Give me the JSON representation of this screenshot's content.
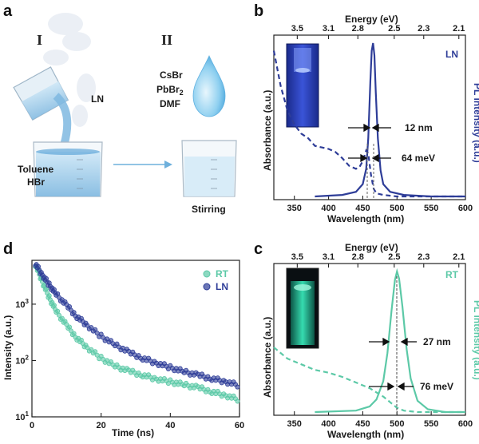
{
  "panels": {
    "a": {
      "letter": "a",
      "step1": "I",
      "step2": "II",
      "ln_label": "LN",
      "beaker1_label_1": "Toluene",
      "beaker1_label_2": "HBr",
      "reagent_1": "CsBr",
      "reagent_2_base": "PbBr",
      "reagent_2_sub": "2",
      "reagent_3": "DMF",
      "beaker2_label": "Stirring"
    },
    "b": {
      "letter": "b",
      "sample_label": "LN",
      "fwhm_nm": "12 nm",
      "fwhm_mev": "64 meV",
      "top_axis_title": "Energy (eV)",
      "bottom_axis_title": "Wavelength (nm)",
      "left_axis_title": "Absorbance (a.u.)",
      "right_axis_title": "PL intensity (a.u.)",
      "bottom_ticks": [
        "350",
        "400",
        "450",
        "500",
        "550",
        "600"
      ],
      "top_ticks": [
        "3.5",
        "3.1",
        "2.8",
        "2.5",
        "2.3",
        "2.1"
      ],
      "color": "#2e3d98"
    },
    "c": {
      "letter": "c",
      "sample_label": "RT",
      "fwhm_nm": "27 nm",
      "fwhm_mev": "76 meV",
      "top_axis_title": "Energy (eV)",
      "bottom_axis_title": "Wavelength (nm)",
      "left_axis_title": "Absorbance (a.u.)",
      "right_axis_title": "PL intensity (a.u.)",
      "bottom_ticks": [
        "350",
        "400",
        "450",
        "500",
        "550",
        "600"
      ],
      "top_ticks": [
        "3.5",
        "3.1",
        "2.8",
        "2.5",
        "2.3",
        "2.1"
      ],
      "color": "#5cc9a7"
    },
    "d": {
      "letter": "d",
      "x_axis_title": "Time (ns)",
      "y_axis_title": "Intensity (a.u.)",
      "x_ticks": [
        "0",
        "20",
        "40",
        "60"
      ],
      "y_ticks_base": [
        "10",
        "10",
        "10"
      ],
      "y_ticks_exp": [
        "1",
        "2",
        "3"
      ],
      "legend": [
        {
          "label": "RT",
          "color": "#5cc9a7"
        },
        {
          "label": "LN",
          "color": "#2e3d98"
        }
      ]
    }
  },
  "chart_data": [
    {
      "type": "line",
      "panel": "b",
      "xlabel": "Wavelength (nm)",
      "x2label": "Energy (eV)",
      "ylabel": "Absorbance (a.u.)",
      "y2label": "PL intensity (a.u.)",
      "xlim": [
        320,
        600
      ],
      "series": [
        {
          "style": "dashed",
          "x": [
            320,
            330,
            340,
            350,
            360,
            370,
            380,
            390,
            400,
            410,
            420,
            430,
            440,
            445,
            450,
            455,
            458,
            462,
            466,
            470,
            480,
            500,
            540,
            600
          ],
          "y": [
            0.95,
            0.72,
            0.56,
            0.47,
            0.41,
            0.38,
            0.33,
            0.32,
            0.31,
            0.29,
            0.25,
            0.2,
            0.18,
            0.19,
            0.23,
            0.3,
            0.28,
            0.14,
            0.05,
            0.02,
            0.01,
            0.0,
            0.0,
            0.0
          ]
        },
        {
          "style": "solid",
          "x": [
            380,
            420,
            440,
            450,
            455,
            458,
            461,
            463,
            465,
            467,
            469,
            472,
            476,
            480,
            490,
            510,
            550,
            600
          ],
          "y": [
            0.0,
            0.01,
            0.03,
            0.08,
            0.18,
            0.38,
            0.75,
            0.95,
            1.0,
            0.92,
            0.68,
            0.38,
            0.17,
            0.08,
            0.03,
            0.01,
            0.0,
            0.0
          ]
        }
      ]
    },
    {
      "type": "line",
      "panel": "c",
      "xlabel": "Wavelength (nm)",
      "x2label": "Energy (eV)",
      "ylabel": "Absorbance (a.u.)",
      "y2label": "PL intensity (a.u.)",
      "xlim": [
        320,
        600
      ],
      "series": [
        {
          "style": "dashed",
          "x": [
            320,
            340,
            360,
            380,
            400,
            420,
            440,
            460,
            470,
            480,
            490,
            500,
            510,
            530,
            560,
            600
          ],
          "y": [
            0.46,
            0.38,
            0.34,
            0.3,
            0.28,
            0.25,
            0.21,
            0.17,
            0.14,
            0.11,
            0.07,
            0.03,
            0.01,
            0.0,
            0.0,
            0.0
          ]
        },
        {
          "style": "solid",
          "x": [
            380,
            440,
            460,
            470,
            480,
            486,
            492,
            497,
            500,
            503,
            508,
            514,
            520,
            530,
            545,
            570,
            600
          ],
          "y": [
            0.0,
            0.01,
            0.04,
            0.09,
            0.22,
            0.42,
            0.72,
            0.94,
            1.0,
            0.95,
            0.75,
            0.45,
            0.24,
            0.08,
            0.02,
            0.0,
            0.0
          ]
        }
      ]
    },
    {
      "type": "scatter",
      "panel": "d",
      "xlabel": "Time (ns)",
      "ylabel": "Intensity (a.u.)",
      "xlim": [
        0,
        60
      ],
      "ylim": [
        10,
        6000
      ],
      "yscale": "log",
      "series": [
        {
          "name": "RT",
          "x": [
            1,
            3,
            5,
            7,
            10,
            13,
            16,
            20,
            24,
            28,
            32,
            36,
            40,
            44,
            48,
            52,
            56,
            60
          ],
          "y": [
            5000,
            2500,
            1300,
            750,
            420,
            250,
            170,
            110,
            80,
            65,
            55,
            47,
            42,
            37,
            33,
            28,
            24,
            20
          ]
        },
        {
          "name": "LN",
          "x": [
            1,
            3,
            5,
            7,
            10,
            13,
            16,
            20,
            24,
            28,
            32,
            36,
            40,
            44,
            48,
            52,
            56,
            60
          ],
          "y": [
            5200,
            3300,
            2200,
            1500,
            950,
            600,
            420,
            270,
            190,
            140,
            110,
            90,
            75,
            63,
            55,
            48,
            42,
            36
          ]
        }
      ]
    }
  ]
}
